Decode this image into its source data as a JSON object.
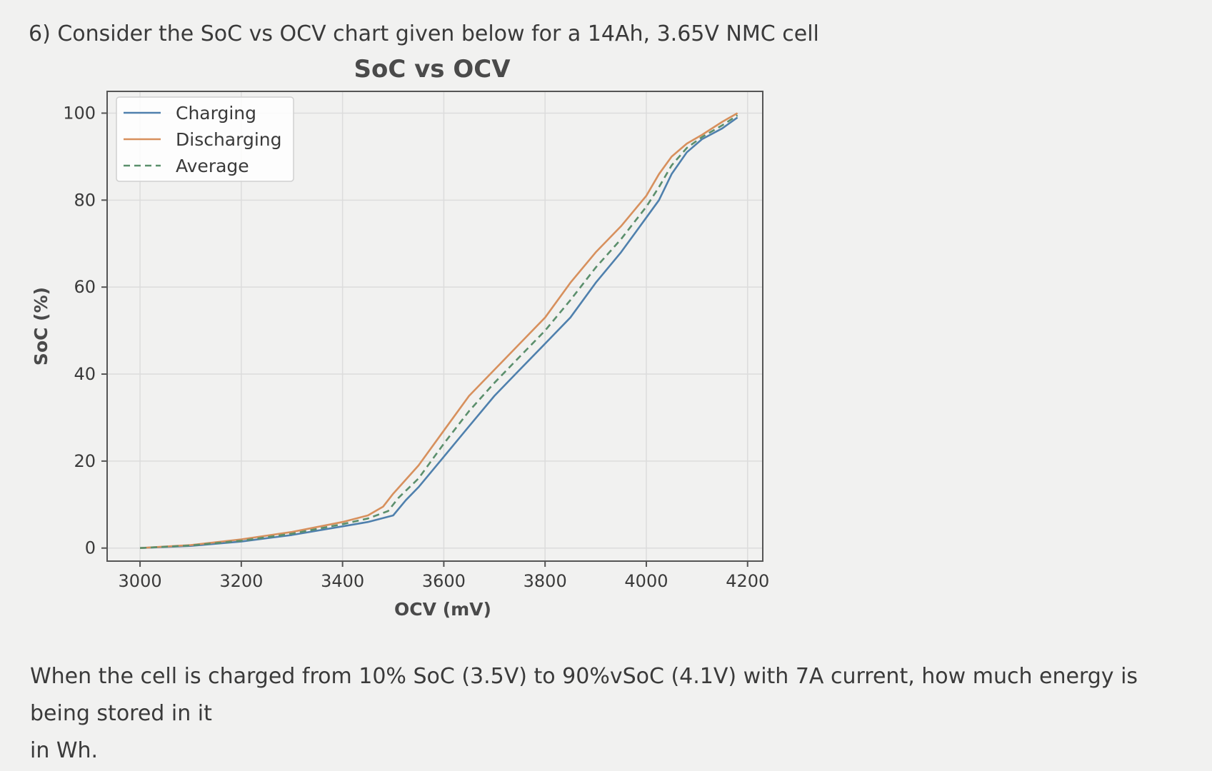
{
  "question": {
    "number_and_text": "6) Consider the SoC vs OCV chart given below for a 14Ah, 3.65V NMC cell"
  },
  "followup": {
    "line1": "When the cell is charged from 10% SoC (3.5V) to 90%vSoC (4.1V) with 7A current, how much energy is being stored in it",
    "line2": "in Wh."
  },
  "chart_data": {
    "type": "line",
    "title": "SoC vs OCV",
    "xlabel": "OCV (mV)",
    "ylabel": "SoC (%)",
    "xlim": [
      2935,
      4230
    ],
    "ylim": [
      -3,
      105
    ],
    "xticks": [
      3000,
      3200,
      3400,
      3600,
      3800,
      4000,
      4200
    ],
    "yticks": [
      0,
      20,
      40,
      60,
      80,
      100
    ],
    "grid": true,
    "legend_position": "upper-left",
    "colors": {
      "Charging": "#4f80ad",
      "Discharging": "#d7905d",
      "Average": "#5b8f6c"
    },
    "series": [
      {
        "name": "Charging",
        "style": "solid",
        "x": [
          3000,
          3100,
          3200,
          3300,
          3400,
          3450,
          3500,
          3525,
          3550,
          3600,
          3650,
          3700,
          3750,
          3800,
          3850,
          3900,
          3950,
          4000,
          4025,
          4050,
          4080,
          4110,
          4150,
          4180
        ],
        "y": [
          0,
          0.5,
          1.5,
          3,
          5,
          6,
          7.5,
          11,
          14,
          21,
          28,
          35,
          41,
          47,
          53,
          61,
          68,
          76,
          80,
          86,
          91,
          94,
          96.5,
          99
        ]
      },
      {
        "name": "Discharging",
        "style": "solid",
        "x": [
          3000,
          3100,
          3200,
          3300,
          3400,
          3450,
          3480,
          3500,
          3550,
          3600,
          3650,
          3700,
          3750,
          3800,
          3850,
          3900,
          3950,
          4000,
          4025,
          4050,
          4080,
          4110,
          4150,
          4180
        ],
        "y": [
          0,
          0.7,
          2,
          3.7,
          6,
          7.5,
          9.5,
          12.5,
          19,
          27,
          35,
          41,
          47,
          53,
          61,
          68,
          74,
          81,
          86,
          90,
          93,
          95,
          98,
          100
        ]
      },
      {
        "name": "Average",
        "style": "dashed",
        "x": [
          3000,
          3100,
          3200,
          3300,
          3400,
          3450,
          3490,
          3510,
          3550,
          3600,
          3650,
          3700,
          3750,
          3800,
          3850,
          3900,
          3950,
          4000,
          4025,
          4050,
          4080,
          4110,
          4150,
          4180
        ],
        "y": [
          0,
          0.6,
          1.7,
          3.3,
          5.5,
          6.8,
          8.5,
          11.5,
          16,
          24,
          31.5,
          38,
          44,
          50,
          57,
          64.5,
          71,
          78.5,
          83,
          88,
          92,
          94.5,
          97.2,
          99.5
        ]
      }
    ]
  }
}
